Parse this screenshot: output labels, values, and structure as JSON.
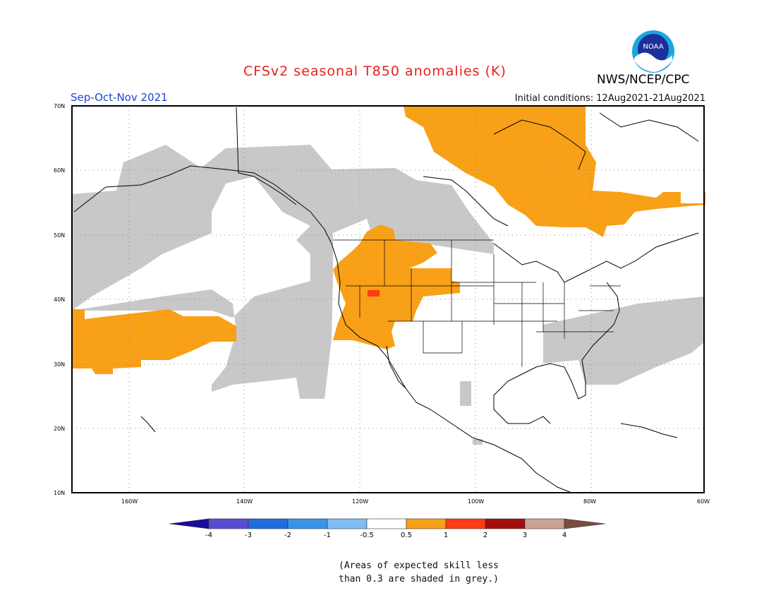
{
  "title": "CFSv2 seasonal T850 anomalies (K)",
  "agency": "NWS/NCEP/CPC",
  "logo_text": "NOAA",
  "season": "Sep-Oct-Nov 2021",
  "initial_conditions": "Initial conditions: 12Aug2021-21Aug2021",
  "lat_labels": [
    "70N",
    "60N",
    "50N",
    "40N",
    "30N",
    "20N",
    "10N"
  ],
  "lon_labels": [
    "160W",
    "140W",
    "120W",
    "100W",
    "80W",
    "60W"
  ],
  "colorbar": {
    "labels": [
      "-4",
      "-3",
      "-2",
      "-1",
      "-0.5",
      "0.5",
      "1",
      "2",
      "3",
      "4"
    ],
    "colors": [
      "#1b0b9c",
      "#5a4bd2",
      "#1e6fdc",
      "#3a93ea",
      "#7fbdf5",
      "#ffffff",
      "#f8a017",
      "#ff3c12",
      "#a50d0d",
      "#c8a392",
      "#7a4c3c"
    ]
  },
  "note_line1": "(Areas of expected skill less",
  "note_line2": "than 0.3 are shaded in grey.)",
  "colors": {
    "skill_grey": "#c8c8c8",
    "anomaly_0_5_1": "#f8a017",
    "anomaly_1_2": "#ff3c12"
  }
}
